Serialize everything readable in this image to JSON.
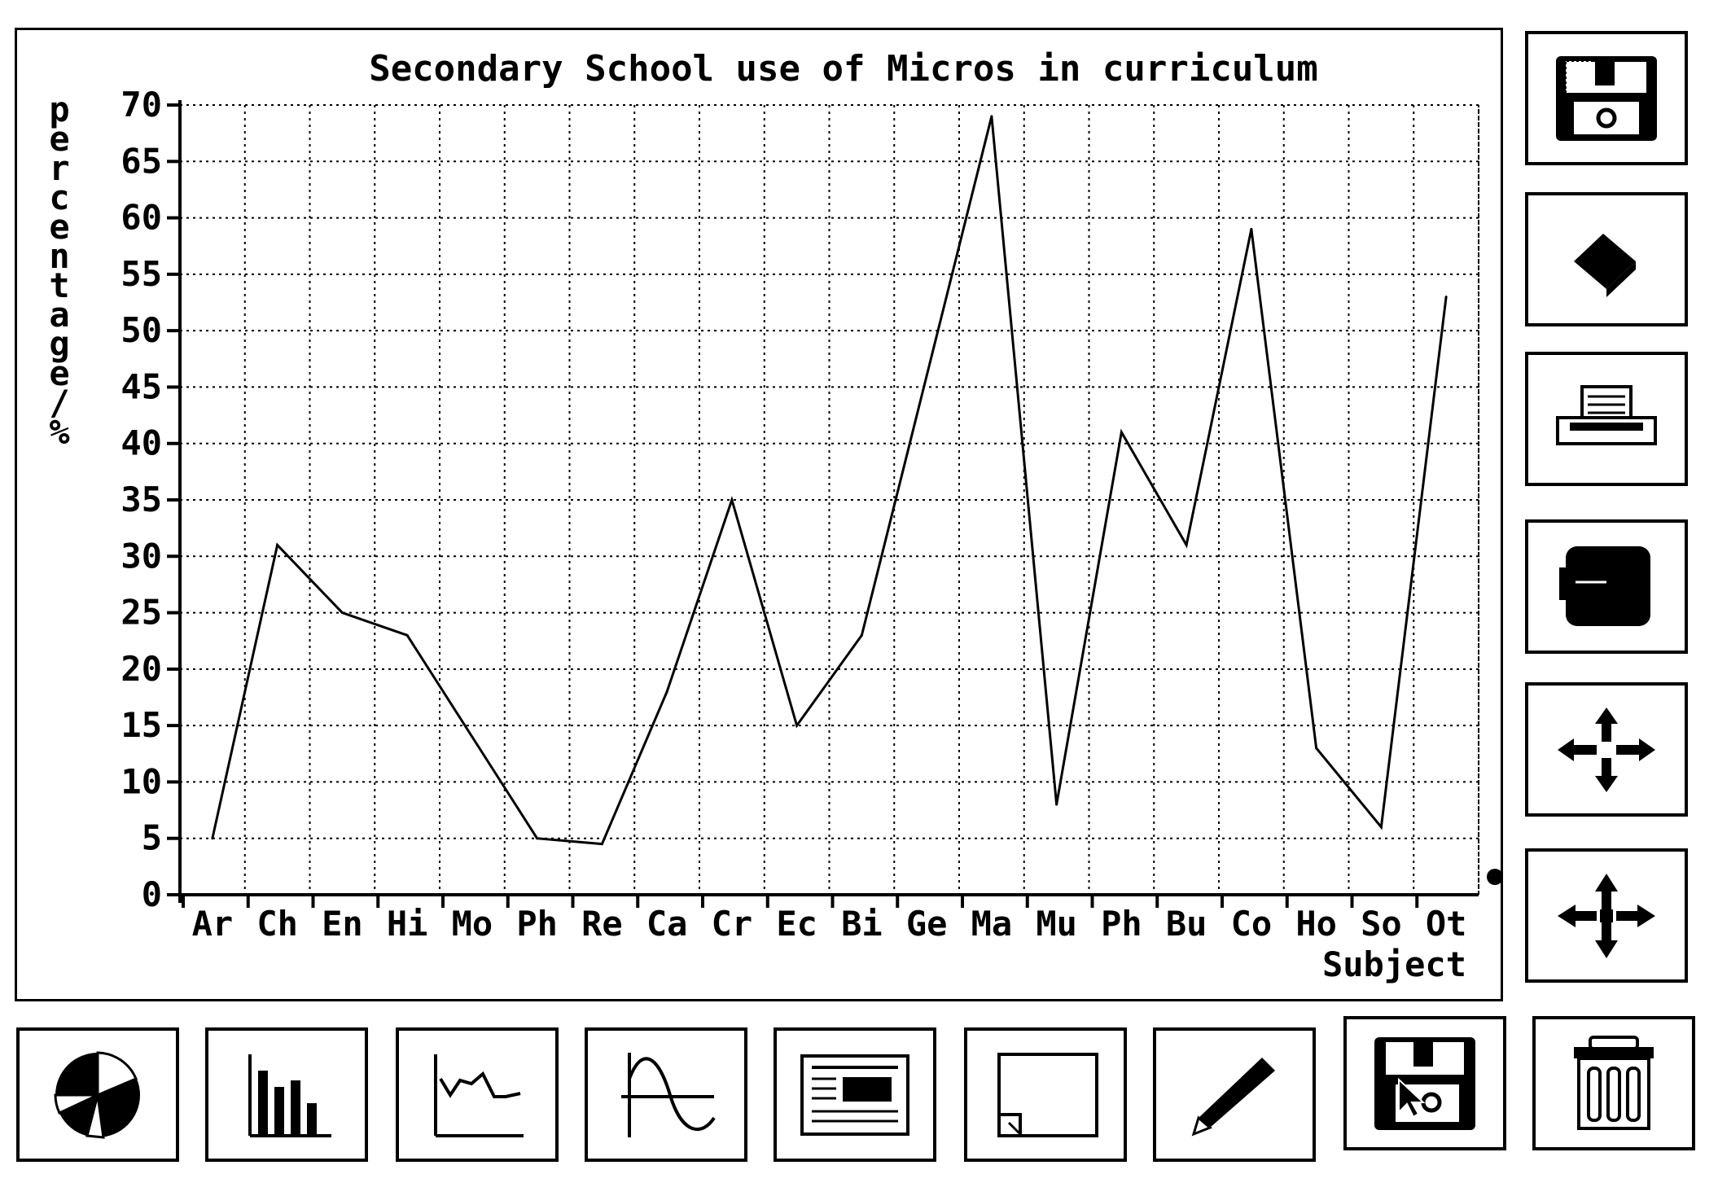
{
  "chart_data": {
    "type": "line",
    "title": "Secondary School use of Micros in curriculum",
    "xlabel": "Subject",
    "ylabel": "percentage/%",
    "categories": [
      "Ar",
      "Ch",
      "En",
      "Hi",
      "Mo",
      "Ph",
      "Re",
      "Ca",
      "Cr",
      "Ec",
      "Bi",
      "Ge",
      "Ma",
      "Mu",
      "Ph",
      "Bu",
      "Co",
      "Ho",
      "So",
      "Ot"
    ],
    "values": [
      5,
      31,
      25,
      23,
      14,
      5,
      4.5,
      18,
      35,
      15,
      23,
      46,
      69,
      8,
      41,
      31,
      59,
      13,
      6,
      53
    ],
    "ylim": [
      0,
      70
    ],
    "yticks": [
      0,
      5,
      10,
      15,
      20,
      25,
      30,
      35,
      40,
      45,
      50,
      55,
      60,
      65,
      70
    ],
    "grid": true,
    "line_color": "#000000"
  },
  "toolbar": {
    "bottom": [
      {
        "icon": "pie-chart-icon"
      },
      {
        "icon": "bar-chart-icon"
      },
      {
        "icon": "line-chart-icon"
      },
      {
        "icon": "curve-chart-icon"
      },
      {
        "icon": "document-icon"
      },
      {
        "icon": "page-icon"
      },
      {
        "icon": "pencil-icon"
      },
      {
        "icon": "save-disk-icon"
      },
      {
        "icon": "trash-icon"
      }
    ],
    "side": [
      {
        "icon": "disk-icon"
      },
      {
        "icon": "eraser-icon"
      },
      {
        "icon": "printer-icon"
      },
      {
        "icon": "card-icon"
      },
      {
        "icon": "move-icon"
      },
      {
        "icon": "resize-icon"
      }
    ]
  },
  "colors": {
    "ink": "#000000",
    "paper": "#ffffff"
  }
}
